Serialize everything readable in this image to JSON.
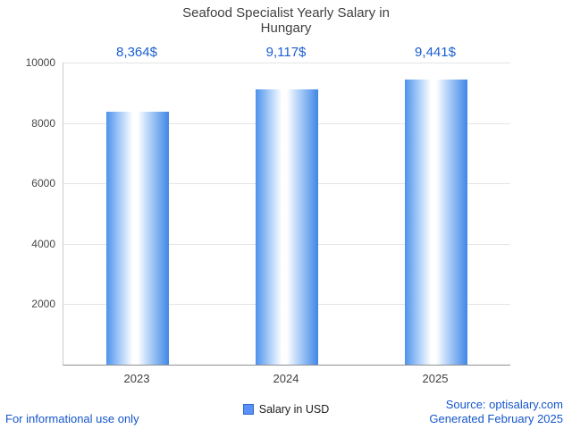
{
  "title": "Seafood Specialist Yearly Salary in Hungary",
  "chart_data": {
    "type": "bar",
    "title": "Seafood Specialist Yearly Salary in Hungary",
    "categories": [
      "2023",
      "2024",
      "2025"
    ],
    "values": [
      8364,
      9117,
      9441
    ],
    "value_labels": [
      "8,364$",
      "9,117$",
      "9,441$"
    ],
    "ylim": [
      0,
      10000
    ],
    "yticks": [
      2000,
      4000,
      6000,
      8000,
      10000
    ],
    "grid": true,
    "legend_position": "bottom",
    "legend": [
      {
        "label": "Salary in USD",
        "color": "#5b8ff9"
      }
    ],
    "bar_gradient": [
      "#4e92ec",
      "#ffffff",
      "#3f87e6"
    ],
    "value_label_color": "#1a5fd0"
  },
  "footer": {
    "left": "For informational use only",
    "source": "Source: optisalary.com",
    "generated": "Generated February 2025"
  }
}
